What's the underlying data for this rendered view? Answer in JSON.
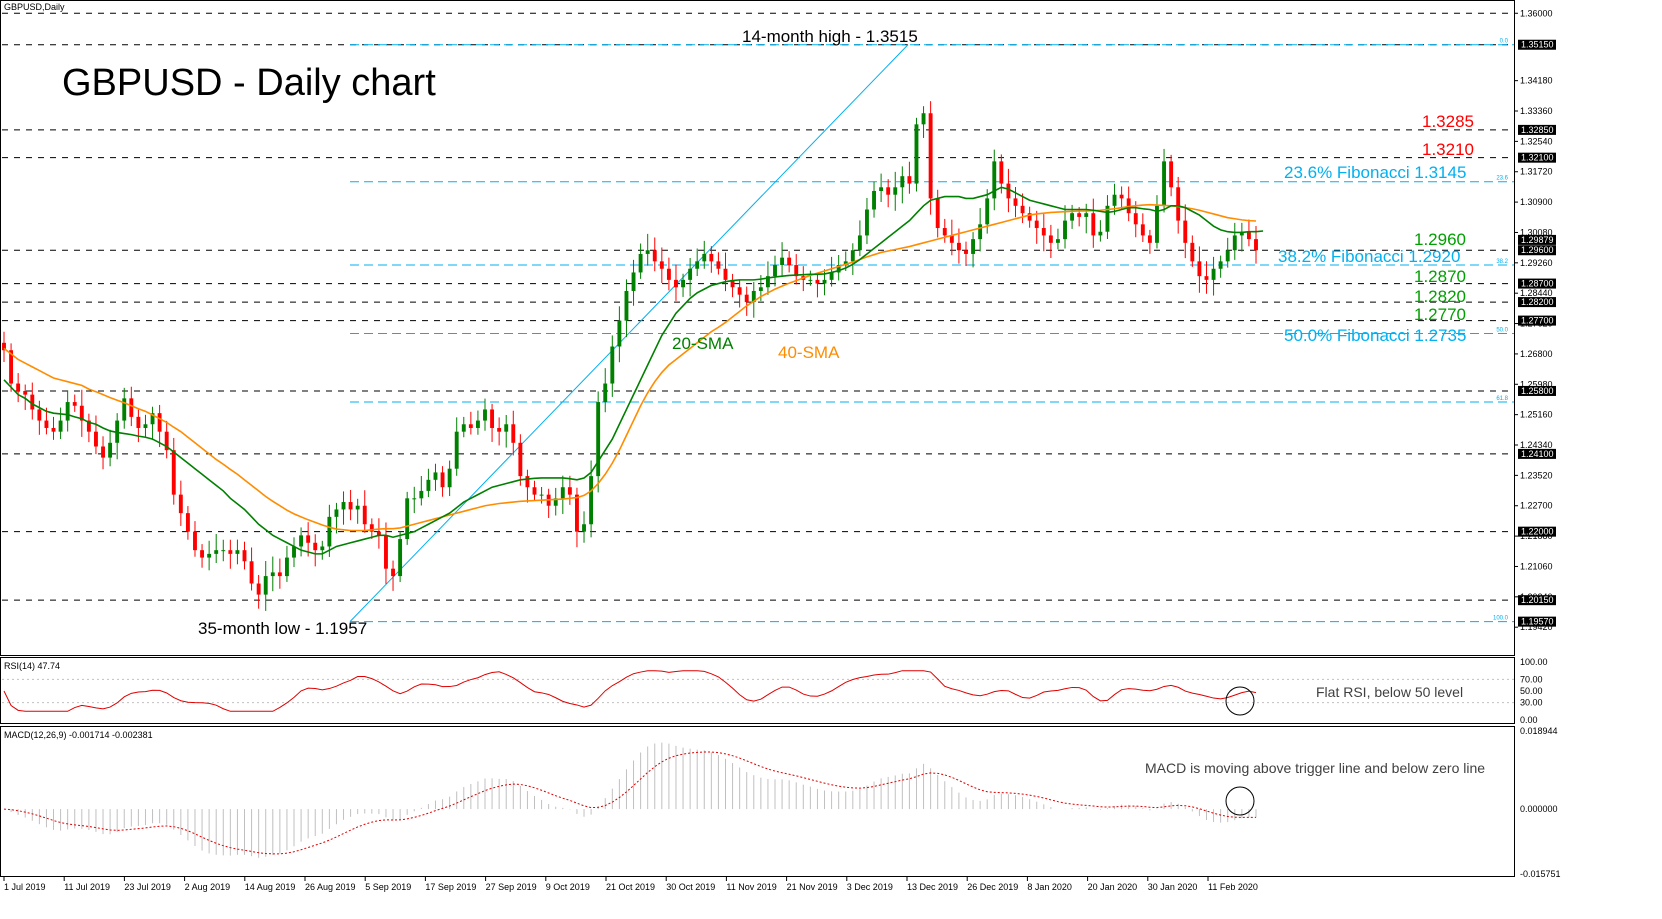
{
  "chart_data": [
    {
      "type": "candlestick",
      "symbol_label": "GBPUSD,Daily",
      "title": "GBPUSD - Daily chart",
      "ylim": [
        1.1875,
        1.3625
      ],
      "price_ticks": [
        "1.36000",
        "1.34180",
        "1.33360",
        "1.32540",
        "1.31720",
        "1.30900",
        "1.30080",
        "1.29260",
        "1.28440",
        "1.27620",
        "1.26800",
        "1.25980",
        "1.25160",
        "1.24340",
        "1.23520",
        "1.22700",
        "1.21880",
        "1.21060",
        "1.20240",
        "1.19420"
      ],
      "level_labels": [
        {
          "value": 1.3515,
          "label": "1.35150"
        },
        {
          "value": 1.3285,
          "label": "1.32850"
        },
        {
          "value": 1.321,
          "label": "1.32100"
        },
        {
          "value": 1.29879,
          "label": "1.29879"
        },
        {
          "value": 1.296,
          "label": "1.29600"
        },
        {
          "value": 1.287,
          "label": "1.28700"
        },
        {
          "value": 1.282,
          "label": "1.28200"
        },
        {
          "value": 1.277,
          "label": "1.27700"
        },
        {
          "value": 1.258,
          "label": "1.25800"
        },
        {
          "value": 1.241,
          "label": "1.24100"
        },
        {
          "value": 1.22,
          "label": "1.22000"
        },
        {
          "value": 1.2015,
          "label": "1.20150"
        },
        {
          "value": 1.1957,
          "label": "1.19570"
        }
      ],
      "horizontal_levels": [
        1.36,
        1.3515,
        1.3285,
        1.321,
        1.296,
        1.287,
        1.282,
        1.277,
        1.258,
        1.241,
        1.22,
        1.2015
      ],
      "fibonacci": [
        {
          "pct_label": "0.0",
          "value": 1.3515
        },
        {
          "pct_label": "23.6",
          "value": 1.3145
        },
        {
          "pct_label": "38.2",
          "value": 1.292
        },
        {
          "pct_label": "50.0",
          "value": 1.2735
        },
        {
          "pct_label": "61.8",
          "value": 1.255
        },
        {
          "pct_label": "100.0",
          "value": 1.1957
        }
      ],
      "trendline": {
        "from": {
          "date": "3 Sep 2019",
          "value": 1.1957
        },
        "to": {
          "date": "12 Dec 2019",
          "value": 1.3515
        }
      },
      "annotations": [
        {
          "text": "14-month high - 1.3515",
          "color": "#000000"
        },
        {
          "text": "35-month low - 1.1957",
          "color": "#000000"
        },
        {
          "text": "1.3285",
          "color": "#ff0000"
        },
        {
          "text": "1.3210",
          "color": "#ff0000"
        },
        {
          "text": "23.6% Fibonacci 1.3145",
          "color": "#00b0f0"
        },
        {
          "text": "1.2960",
          "color": "#00a000"
        },
        {
          "text": "38.2% Fibonacci 1.2920",
          "color": "#00b0f0"
        },
        {
          "text": "1.2870",
          "color": "#00a000"
        },
        {
          "text": "1.2820",
          "color": "#00a000"
        },
        {
          "text": "1.2770",
          "color": "#00a000"
        },
        {
          "text": "50.0% Fibonacci 1.2735",
          "color": "#00b0f0"
        },
        {
          "text": "20-SMA",
          "color": "#008000"
        },
        {
          "text": "40-SMA",
          "color": "#ff8c00"
        }
      ],
      "series": [
        {
          "name": "20-SMA",
          "color": "#008000"
        },
        {
          "name": "40-SMA",
          "color": "#ff8c00"
        }
      ],
      "x_tick_labels": [
        "1 Jul 2019",
        "11 Jul 2019",
        "23 Jul 2019",
        "2 Aug 2019",
        "14 Aug 2019",
        "26 Aug 2019",
        "5 Sep 2019",
        "17 Sep 2019",
        "27 Sep 2019",
        "9 Oct 2019",
        "21 Oct 2019",
        "30 Oct 2019",
        "11 Nov 2019",
        "21 Nov 2019",
        "3 Dec 2019",
        "13 Dec 2019",
        "26 Dec 2019",
        "8 Jan 2020",
        "20 Jan 2020",
        "30 Jan 2020",
        "11 Feb 2020"
      ],
      "close": [
        1.269,
        1.26,
        1.258,
        1.257,
        1.253,
        1.25,
        1.248,
        1.247,
        1.25,
        1.255,
        1.254,
        1.25,
        1.247,
        1.243,
        1.24,
        1.244,
        1.25,
        1.256,
        1.251,
        1.248,
        1.249,
        1.252,
        1.247,
        1.242,
        1.23,
        1.225,
        1.22,
        1.215,
        1.213,
        1.214,
        1.215,
        1.215,
        1.214,
        1.215,
        1.212,
        1.206,
        1.203,
        1.208,
        1.209,
        1.208,
        1.213,
        1.216,
        1.219,
        1.217,
        1.215,
        1.216,
        1.224,
        1.226,
        1.228,
        1.226,
        1.227,
        1.222,
        1.22,
        1.219,
        1.21,
        1.208,
        1.218,
        1.229,
        1.229,
        1.231,
        1.234,
        1.236,
        1.232,
        1.237,
        1.247,
        1.249,
        1.248,
        1.25,
        1.253,
        1.248,
        1.247,
        1.249,
        1.244,
        1.235,
        1.232,
        1.23,
        1.23,
        1.227,
        1.229,
        1.232,
        1.23,
        1.22,
        1.222,
        1.235,
        1.255,
        1.26,
        1.27,
        1.277,
        1.285,
        1.29,
        1.295,
        1.296,
        1.293,
        1.291,
        1.288,
        1.286,
        1.288,
        1.291,
        1.293,
        1.295,
        1.293,
        1.291,
        1.288,
        1.286,
        1.284,
        1.282,
        1.285,
        1.286,
        1.289,
        1.292,
        1.294,
        1.292,
        1.289,
        1.288,
        1.288,
        1.287,
        1.288,
        1.29,
        1.292,
        1.293,
        1.296,
        1.3,
        1.307,
        1.312,
        1.313,
        1.311,
        1.313,
        1.316,
        1.314,
        1.33,
        1.333,
        1.31,
        1.302,
        1.3,
        1.298,
        1.296,
        1.295,
        1.299,
        1.303,
        1.31,
        1.32,
        1.314,
        1.31,
        1.308,
        1.306,
        1.304,
        1.302,
        1.3,
        1.298,
        1.299,
        1.304,
        1.306,
        1.305,
        1.306,
        1.3,
        1.301,
        1.308,
        1.311,
        1.31,
        1.306,
        1.303,
        1.3,
        1.298,
        1.308,
        1.32,
        1.313,
        1.304,
        1.298,
        1.293,
        1.289,
        1.288,
        1.291,
        1.293,
        1.296,
        1.3,
        1.301,
        1.299,
        1.296
      ],
      "sma20": [
        1.261,
        1.259,
        1.257,
        1.256,
        1.2545,
        1.2535,
        1.2525,
        1.252,
        1.2518,
        1.2516,
        1.251,
        1.2505,
        1.2495,
        1.249,
        1.248,
        1.2472,
        1.2468,
        1.2465,
        1.2462,
        1.2458,
        1.2455,
        1.245,
        1.244,
        1.243,
        1.2415,
        1.24,
        1.2385,
        1.237,
        1.2355,
        1.234,
        1.2325,
        1.231,
        1.229,
        1.2275,
        1.226,
        1.224,
        1.222,
        1.2205,
        1.219,
        1.218,
        1.217,
        1.216,
        1.215,
        1.2145,
        1.214,
        1.214,
        1.215,
        1.216,
        1.2165,
        1.217,
        1.2175,
        1.218,
        1.2185,
        1.219,
        1.219,
        1.2185,
        1.219,
        1.2195,
        1.22,
        1.221,
        1.222,
        1.223,
        1.224,
        1.225,
        1.2265,
        1.228,
        1.229,
        1.23,
        1.231,
        1.232,
        1.2325,
        1.233,
        1.2335,
        1.234,
        1.2342,
        1.2344,
        1.2345,
        1.2345,
        1.2345,
        1.2345,
        1.2343,
        1.234,
        1.2345,
        1.236,
        1.239,
        1.242,
        1.245,
        1.249,
        1.253,
        1.257,
        1.261,
        1.265,
        1.269,
        1.273,
        1.276,
        1.279,
        1.281,
        1.283,
        1.2845,
        1.2855,
        1.2865,
        1.287,
        1.2875,
        1.2878,
        1.288,
        1.288,
        1.288,
        1.2882,
        1.2885,
        1.2888,
        1.289,
        1.2892,
        1.2893,
        1.2894,
        1.2895,
        1.2895,
        1.2896,
        1.29,
        1.2905,
        1.2912,
        1.2922,
        1.2935,
        1.295,
        1.2965,
        1.298,
        1.2995,
        1.301,
        1.3025,
        1.304,
        1.306,
        1.308,
        1.3095,
        1.31,
        1.3105,
        1.3105,
        1.3105,
        1.31,
        1.31,
        1.3105,
        1.311,
        1.312,
        1.313,
        1.3125,
        1.3115,
        1.3105,
        1.3095,
        1.309,
        1.3085,
        1.308,
        1.3075,
        1.307,
        1.307,
        1.307,
        1.307,
        1.3068,
        1.3065,
        1.3062,
        1.3065,
        1.307,
        1.3075,
        1.3075,
        1.3072,
        1.307,
        1.3065,
        1.307,
        1.308,
        1.308,
        1.3075,
        1.3065,
        1.3055,
        1.304,
        1.3025,
        1.3015,
        1.301,
        1.3008,
        1.3008,
        1.301,
        1.301,
        1.3012
      ],
      "sma40": [
        1.2695,
        1.268,
        1.2665,
        1.2655,
        1.2645,
        1.2635,
        1.2625,
        1.2615,
        1.261,
        1.2605,
        1.26,
        1.2595,
        1.2585,
        1.2578,
        1.257,
        1.2562,
        1.2555,
        1.2548,
        1.254,
        1.2532,
        1.2525,
        1.2515,
        1.2505,
        1.2495,
        1.2482,
        1.247,
        1.2455,
        1.244,
        1.2425,
        1.241,
        1.2395,
        1.2382,
        1.2368,
        1.2355,
        1.234,
        1.2325,
        1.231,
        1.2295,
        1.2282,
        1.227,
        1.2258,
        1.2248,
        1.224,
        1.2232,
        1.2225,
        1.2218,
        1.2212,
        1.2207,
        1.2205,
        1.2203,
        1.2203,
        1.2203,
        1.2205,
        1.2207,
        1.2208,
        1.2208,
        1.221,
        1.2215,
        1.222,
        1.2225,
        1.223,
        1.2235,
        1.224,
        1.2245,
        1.225,
        1.2255,
        1.226,
        1.2265,
        1.227,
        1.2273,
        1.2276,
        1.2278,
        1.228,
        1.2282,
        1.2283,
        1.2284,
        1.2285,
        1.2286,
        1.2287,
        1.2288,
        1.229,
        1.2292,
        1.2298,
        1.231,
        1.233,
        1.2355,
        1.2385,
        1.242,
        1.246,
        1.25,
        1.254,
        1.2575,
        1.2605,
        1.263,
        1.265,
        1.2665,
        1.268,
        1.2695,
        1.271,
        1.2725,
        1.274,
        1.2752,
        1.2765,
        1.278,
        1.2795,
        1.281,
        1.2822,
        1.2835,
        1.2845,
        1.2855,
        1.2863,
        1.2871,
        1.2878,
        1.2885,
        1.2892,
        1.2898,
        1.2904,
        1.291,
        1.2916,
        1.2922,
        1.2928,
        1.2935,
        1.2942,
        1.2948,
        1.2954,
        1.2958,
        1.2962,
        1.2966,
        1.297,
        1.2975,
        1.298,
        1.2985,
        1.299,
        1.2995,
        1.3,
        1.3005,
        1.301,
        1.3015,
        1.302,
        1.3025,
        1.303,
        1.3035,
        1.304,
        1.3045,
        1.305,
        1.3055,
        1.3058,
        1.306,
        1.3062,
        1.3063,
        1.3064,
        1.3065,
        1.3066,
        1.3066,
        1.3067,
        1.3068,
        1.307,
        1.3072,
        1.3075,
        1.3078,
        1.308,
        1.3082,
        1.3083,
        1.3082,
        1.3081,
        1.308,
        1.3078,
        1.3075,
        1.3072,
        1.3068,
        1.3063,
        1.3058,
        1.3053,
        1.3048,
        1.3045,
        1.3042,
        1.304,
        1.3039
      ]
    },
    {
      "type": "line",
      "label": "RSI(14) 47.74",
      "ylim": [
        0,
        100
      ],
      "ticks": [
        "100.00",
        "70.00",
        "50.00",
        "30.00",
        "0.00"
      ],
      "annotation": "Flat RSI, below 50 level",
      "series": [
        {
          "name": "RSI(14)",
          "color": "#e00000"
        }
      ]
    },
    {
      "type": "histogram",
      "label": "MACD(12,26,9) -0.001714 -0.002381",
      "ylim": [
        -0.015751,
        0.018944
      ],
      "ticks": [
        "0.018944",
        "0.000000",
        "-0.015751"
      ],
      "annotation": "MACD is moving above trigger line and below zero line",
      "series": [
        {
          "name": "MACD",
          "color": "#c0c0c0"
        },
        {
          "name": "Signal",
          "color": "#e00000"
        }
      ]
    }
  ]
}
